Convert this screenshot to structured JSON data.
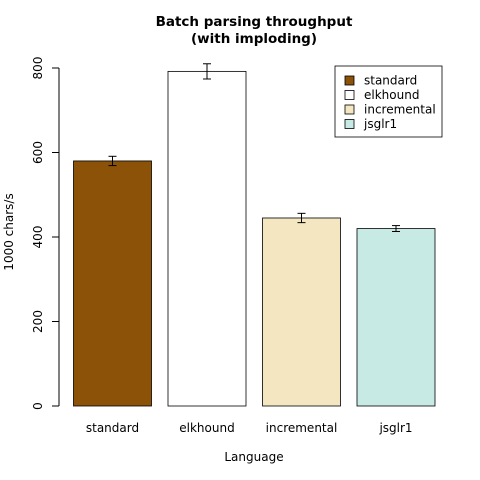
{
  "chart_data": {
    "type": "bar",
    "title_lines": [
      "Batch parsing throughput",
      "(with imploding)"
    ],
    "xlabel": "Language",
    "ylabel": "1000 chars/s",
    "categories": [
      "standard",
      "elkhound",
      "incremental",
      "jsglr1"
    ],
    "values": [
      580,
      792,
      445,
      420
    ],
    "errors": [
      11,
      18,
      11,
      7
    ],
    "colors": [
      "#8B5208",
      "#FFFFFF",
      "#F5E6C2",
      "#C7EAE4"
    ],
    "ylim": [
      0,
      800
    ],
    "yticks": [
      "0",
      "200",
      "400",
      "600",
      "800"
    ],
    "legend": {
      "placement": "top-right",
      "entries": [
        "standard",
        "elkhound",
        "incremental",
        "jsglr1"
      ]
    },
    "grid": false
  }
}
